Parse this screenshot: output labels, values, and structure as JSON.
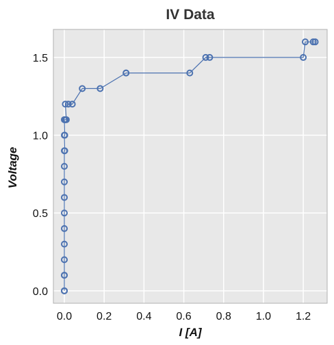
{
  "chart_data": {
    "type": "line",
    "title": "IV Data",
    "xlabel": "I [A]",
    "ylabel": "Voltage",
    "xlim": [
      -0.055,
      1.32
    ],
    "ylim": [
      -0.08,
      1.68
    ],
    "x_ticks": [
      0.0,
      0.2,
      0.4,
      0.6,
      0.8,
      1.0,
      1.2
    ],
    "x_tick_labels": [
      "0.0",
      "0.2",
      "0.4",
      "0.6",
      "0.8",
      "1.0",
      "1.2"
    ],
    "y_ticks": [
      0.0,
      0.5,
      1.0,
      1.5
    ],
    "y_tick_labels": [
      "0.0",
      "0.5",
      "1.0",
      "1.5"
    ],
    "grid": true,
    "background": "#e8e8e8",
    "grid_color": "#ffffff",
    "series": [
      {
        "color": "#4c72b0",
        "marker": "open-circle",
        "x": [
          0.0,
          0.0,
          0.0,
          0.0,
          0.0,
          0.0,
          0.0,
          0.0,
          0.0,
          0.0,
          0.0,
          0.0,
          0.002,
          0.0,
          0.002,
          0.0,
          0.006,
          0.002,
          0.01,
          0.005,
          0.02,
          0.04,
          0.09,
          0.18,
          0.31,
          0.31,
          0.63,
          0.71,
          0.73,
          1.2,
          1.21,
          1.25,
          1.26
        ],
        "y": [
          0.0,
          0.0,
          0.1,
          0.1,
          0.2,
          0.3,
          0.4,
          0.5,
          0.6,
          0.7,
          0.8,
          0.9,
          0.9,
          1.0,
          1.0,
          1.1,
          1.1,
          1.1,
          1.1,
          1.2,
          1.2,
          1.2,
          1.3,
          1.3,
          1.4,
          1.4,
          1.4,
          1.5,
          1.5,
          1.5,
          1.6,
          1.6,
          1.6
        ]
      }
    ]
  }
}
